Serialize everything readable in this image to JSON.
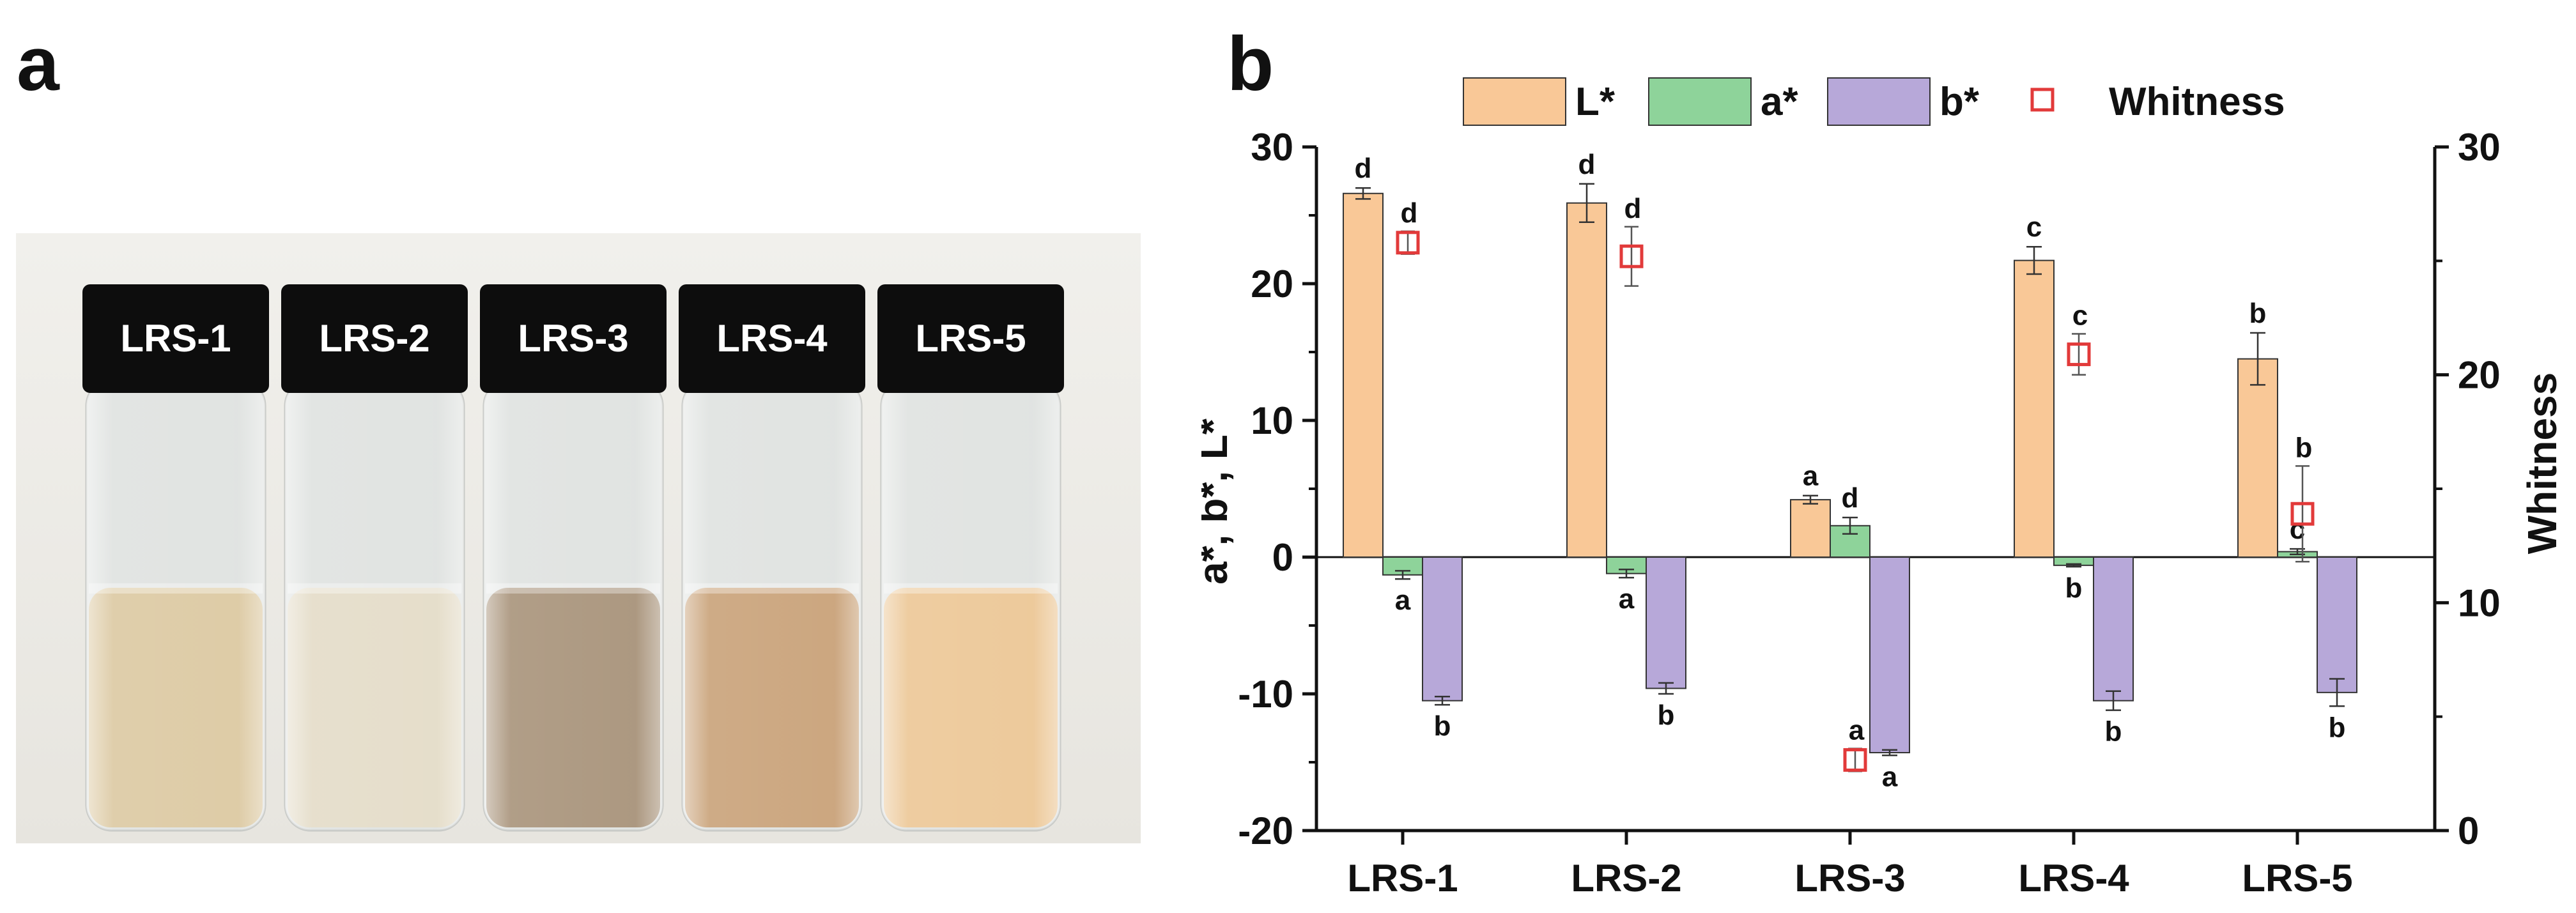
{
  "panels": {
    "a": "a",
    "b": "b"
  },
  "photo": {
    "vials": [
      {
        "label": "LRS-1",
        "liquid": "#dcc9a2"
      },
      {
        "label": "LRS-2",
        "liquid": "#e4dcc8"
      },
      {
        "label": "LRS-3",
        "liquid": "#a8937a"
      },
      {
        "label": "LRS-4",
        "liquid": "#c9a279"
      },
      {
        "label": "LRS-5",
        "liquid": "#ecc796"
      }
    ]
  },
  "chart_data": {
    "type": "bar",
    "categories": [
      "LRS-1",
      "LRS-2",
      "LRS-3",
      "LRS-4",
      "LRS-5"
    ],
    "series": [
      {
        "name": "L*",
        "axis": "left",
        "color": "#f9c897",
        "values": [
          26.6,
          25.9,
          4.2,
          21.7,
          14.5
        ],
        "errors": [
          0.4,
          1.4,
          0.3,
          1.0,
          1.9
        ],
        "letters": [
          "d",
          "d",
          "a",
          "c",
          "b"
        ]
      },
      {
        "name": "a*",
        "axis": "left",
        "color": "#8ed39a",
        "values": [
          -1.3,
          -1.2,
          2.3,
          -0.6,
          0.4
        ],
        "errors": [
          0.3,
          0.3,
          0.6,
          0.1,
          0.2
        ],
        "letters": [
          "a",
          "a",
          "d",
          "b",
          "c"
        ]
      },
      {
        "name": "b*",
        "axis": "left",
        "color": "#b7a8d9",
        "values": [
          -10.5,
          -9.6,
          -14.3,
          -10.5,
          -9.9
        ],
        "errors": [
          0.3,
          0.4,
          0.2,
          0.7,
          1.0
        ],
        "letters": [
          "b",
          "b",
          "a",
          "b",
          "b"
        ]
      },
      {
        "name": "Whitness",
        "axis": "right",
        "type": "scatter",
        "marker": "open-square",
        "color": "#e23a3a",
        "values": [
          25.8,
          25.2,
          3.1,
          20.9,
          13.9
        ],
        "errors": [
          0.5,
          1.3,
          0.5,
          0.9,
          2.1
        ],
        "letters": [
          "d",
          "d",
          "a",
          "c",
          "b"
        ]
      }
    ],
    "ylabel": "a*, b*, L*",
    "ylim": [
      -20,
      30
    ],
    "yticks": [
      -20,
      -10,
      0,
      10,
      20,
      30
    ],
    "y2label": "Whitness",
    "y2lim": [
      0,
      30
    ],
    "y2ticks": [
      0,
      10,
      20,
      30
    ],
    "legend": "top"
  }
}
